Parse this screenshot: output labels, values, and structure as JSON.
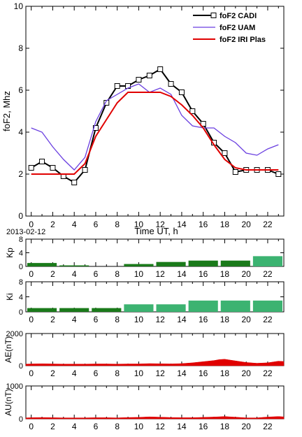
{
  "chart_data": [
    {
      "type": "line",
      "ylabel": "foF2, Mhz",
      "xlabel": "Time UT, h",
      "date_label": "2013-02-12",
      "xlim": [
        -0.5,
        23.5
      ],
      "ylim": [
        0,
        10
      ],
      "xticks": [
        0,
        2,
        4,
        6,
        8,
        10,
        12,
        14,
        16,
        18,
        20,
        22
      ],
      "xtick_labels": [
        "0",
        "2",
        "4",
        "6",
        "8",
        "10",
        "12",
        "14",
        "16",
        "18",
        "20",
        "22"
      ],
      "yticks": [
        0,
        2,
        4,
        6,
        8,
        10
      ],
      "ytick_labels": [
        "0",
        "2",
        "4",
        "6",
        "8",
        "10"
      ],
      "legend_position": "top-right",
      "series": [
        {
          "name": "foF2 CADI",
          "color": "#000000",
          "marker": "square",
          "x": [
            0,
            1,
            2,
            3,
            4,
            5,
            6,
            7,
            8,
            9,
            10,
            11,
            12,
            13,
            14,
            15,
            16,
            17,
            18,
            19,
            20,
            21,
            22,
            23
          ],
          "y": [
            2.3,
            2.6,
            2.3,
            1.9,
            1.6,
            2.2,
            4.2,
            5.4,
            6.2,
            6.2,
            6.5,
            6.7,
            7.0,
            6.3,
            5.9,
            5.0,
            4.4,
            3.5,
            3.0,
            2.1,
            2.2,
            2.2,
            2.2,
            2.0
          ]
        },
        {
          "name": "foF2 UAM",
          "color": "#6a3fe0",
          "x": [
            0,
            1,
            2,
            3,
            4,
            5,
            6,
            7,
            8,
            9,
            10,
            11,
            12,
            13,
            14,
            15,
            16,
            17,
            18,
            19,
            20,
            21,
            22,
            23
          ],
          "y": [
            4.2,
            4.0,
            3.3,
            2.7,
            2.2,
            2.8,
            4.5,
            5.5,
            5.8,
            6.1,
            6.3,
            5.9,
            6.1,
            5.8,
            4.8,
            4.3,
            4.2,
            4.2,
            3.8,
            3.5,
            3.0,
            2.9,
            3.2,
            3.4
          ]
        },
        {
          "name": "foF2 IRI Plas",
          "color": "#e00000",
          "x": [
            0,
            1,
            2,
            3,
            4,
            5,
            6,
            7,
            8,
            9,
            10,
            11,
            12,
            13,
            14,
            15,
            16,
            17,
            18,
            19,
            20,
            21,
            22,
            23
          ],
          "y": [
            2.0,
            2.0,
            2.0,
            2.0,
            2.0,
            2.5,
            3.8,
            4.6,
            5.4,
            5.9,
            5.9,
            5.9,
            5.9,
            5.7,
            5.3,
            4.8,
            4.2,
            3.4,
            2.7,
            2.3,
            2.2,
            2.2,
            2.2,
            2.2
          ]
        }
      ]
    },
    {
      "type": "bar",
      "ylabel": "Kp",
      "xlim": [
        -0.5,
        23.5
      ],
      "ylim": [
        0,
        8
      ],
      "yticks": [
        0,
        4,
        8
      ],
      "ytick_labels": [
        "0",
        "4",
        "8"
      ],
      "bar_width_hours": 3,
      "starts": [
        -0.5,
        2.5,
        5.5,
        8.5,
        11.5,
        14.5,
        17.5,
        20.5
      ],
      "values": [
        1.0,
        0.3,
        0.0,
        0.7,
        1.3,
        1.7,
        1.7,
        3.0
      ],
      "colors": [
        "#1a7a1a",
        "#1a7a1a",
        "#1a7a1a",
        "#1a7a1a",
        "#1a7a1a",
        "#1a7a1a",
        "#1a7a1a",
        "#3cb371"
      ]
    },
    {
      "type": "bar",
      "ylabel": "Ki",
      "xlim": [
        -0.5,
        23.5
      ],
      "ylim": [
        0,
        8
      ],
      "yticks": [
        0,
        4,
        8
      ],
      "ytick_labels": [
        "0",
        "4",
        "8"
      ],
      "bar_width_hours": 3,
      "starts": [
        -0.5,
        2.5,
        5.5,
        8.5,
        11.5,
        14.5,
        17.5,
        20.5
      ],
      "values": [
        1.0,
        1.0,
        1.0,
        2.0,
        2.0,
        3.0,
        3.0,
        3.0
      ],
      "colors": [
        "#1a7a1a",
        "#1a7a1a",
        "#1a7a1a",
        "#3cb371",
        "#3cb371",
        "#3cb371",
        "#3cb371",
        "#3cb371"
      ]
    },
    {
      "type": "area",
      "ylabel": "AE(nT)",
      "xlim": [
        -0.5,
        23.5
      ],
      "ylim": [
        0,
        2000
      ],
      "yticks": [
        0,
        2000
      ],
      "ytick_labels": [
        "0",
        "2000"
      ],
      "color": "#e00000",
      "x": [
        -0.5,
        0,
        1,
        2,
        3,
        4,
        5,
        6,
        7,
        8,
        9,
        10,
        11,
        12,
        13,
        14,
        15,
        16,
        17,
        17.5,
        18,
        18.5,
        19,
        20,
        21,
        22,
        23,
        23.5
      ],
      "y": [
        100,
        110,
        120,
        110,
        100,
        100,
        100,
        110,
        110,
        100,
        110,
        110,
        130,
        120,
        110,
        130,
        180,
        250,
        320,
        380,
        400,
        350,
        300,
        200,
        150,
        180,
        280,
        260
      ]
    },
    {
      "type": "area",
      "ylabel": "AU(nT)",
      "xlim": [
        -0.5,
        23.5
      ],
      "ylim": [
        0,
        1000
      ],
      "yticks": [
        0,
        1000
      ],
      "ytick_labels": [
        "0",
        "1000"
      ],
      "color": "#e00000",
      "x": [
        -0.5,
        0,
        1,
        2,
        3,
        4,
        5,
        6,
        7,
        8,
        9,
        10,
        11,
        12,
        13,
        14,
        15,
        16,
        17,
        18,
        19,
        20,
        21,
        22,
        23,
        23.5
      ],
      "y": [
        30,
        35,
        40,
        35,
        30,
        30,
        30,
        35,
        35,
        30,
        40,
        45,
        60,
        50,
        40,
        35,
        35,
        45,
        55,
        70,
        50,
        30,
        30,
        55,
        70,
        60
      ]
    }
  ]
}
